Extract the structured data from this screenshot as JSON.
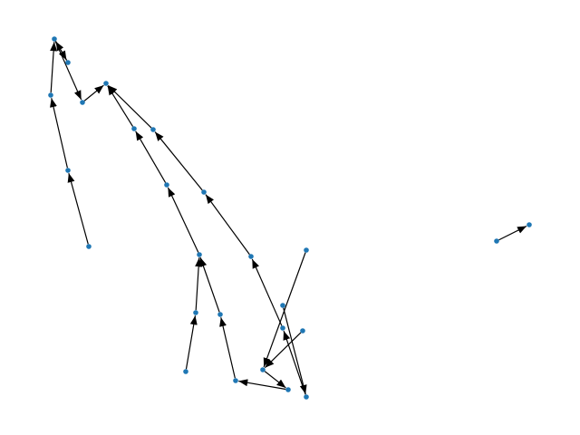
{
  "graph": {
    "node_color": "#1f77b4",
    "edge_color": "#000000",
    "directed": true,
    "nodes": [
      {
        "id": "n1"
      },
      {
        "id": "n2"
      },
      {
        "id": "n3"
      },
      {
        "id": "n4"
      },
      {
        "id": "n5"
      },
      {
        "id": "n6"
      },
      {
        "id": "n7"
      },
      {
        "id": "n8"
      },
      {
        "id": "n9"
      },
      {
        "id": "n10"
      },
      {
        "id": "n11"
      },
      {
        "id": "n12"
      },
      {
        "id": "n13"
      },
      {
        "id": "n14"
      },
      {
        "id": "n15"
      },
      {
        "id": "n16"
      },
      {
        "id": "n17"
      },
      {
        "id": "n18"
      },
      {
        "id": "n19"
      },
      {
        "id": "n20"
      },
      {
        "id": "n21"
      },
      {
        "id": "n22"
      },
      {
        "id": "n23"
      },
      {
        "id": "n24"
      },
      {
        "id": "n25"
      },
      {
        "id": "n26"
      }
    ],
    "edges": [
      {
        "from": "n5",
        "to": "n4"
      },
      {
        "from": "n4",
        "to": "n3"
      },
      {
        "from": "n3",
        "to": "n1"
      },
      {
        "from": "n1",
        "to": "n2"
      },
      {
        "from": "n1",
        "to": "n6"
      },
      {
        "from": "n2",
        "to": "n1"
      },
      {
        "from": "n6",
        "to": "n7"
      },
      {
        "from": "n9",
        "to": "n7"
      },
      {
        "from": "n8",
        "to": "n7"
      },
      {
        "from": "n11",
        "to": "n8"
      },
      {
        "from": "n12",
        "to": "n11"
      },
      {
        "from": "n10",
        "to": "n9"
      },
      {
        "from": "n14",
        "to": "n10"
      },
      {
        "from": "n13",
        "to": "n12"
      },
      {
        "from": "n15",
        "to": "n12"
      },
      {
        "from": "n16",
        "to": "n13"
      },
      {
        "from": "n17",
        "to": "n15"
      },
      {
        "from": "n21",
        "to": "n17"
      },
      {
        "from": "n18",
        "to": "n14"
      },
      {
        "from": "n19",
        "to": "n18"
      },
      {
        "from": "n23",
        "to": "n19"
      },
      {
        "from": "n24",
        "to": "n20"
      },
      {
        "from": "n22",
        "to": "n20"
      },
      {
        "from": "n20",
        "to": "n21"
      },
      {
        "from": "n25",
        "to": "n26"
      }
    ]
  }
}
